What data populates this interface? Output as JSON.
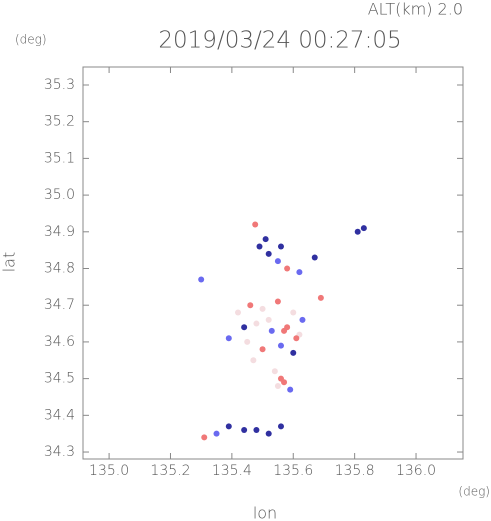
{
  "chart_data": {
    "type": "scatter",
    "title": "2019/03/24 00:27:05",
    "annotation": "ALT(km) 2.0",
    "y_unit": "(deg)",
    "x_unit": "(deg)",
    "xlabel": "lon",
    "ylabel": "lat",
    "xlim": [
      134.915,
      136.153
    ],
    "ylim": [
      34.281,
      35.349
    ],
    "xticks": [
      {
        "value": 135,
        "label": "135.0"
      },
      135.2,
      135.4,
      135.6,
      135.8,
      {
        "value": 136,
        "label": "136.0"
      }
    ],
    "yticks": [
      34.3,
      34.4,
      34.5,
      34.6,
      34.7,
      34.8,
      34.9,
      {
        "value": 35,
        "label": "35.0"
      },
      35.1,
      35.2,
      35.3
    ],
    "x": [
      135.3,
      135.476,
      135.49,
      135.52,
      135.55,
      135.58,
      135.51,
      135.56,
      135.81,
      135.83,
      135.67,
      135.69,
      135.62,
      135.42,
      135.46,
      135.5,
      135.55,
      135.6,
      135.63,
      135.44,
      135.48,
      135.53,
      135.58,
      135.62,
      135.45,
      135.5,
      135.56,
      135.61,
      135.39,
      135.52,
      135.57,
      135.6,
      135.47,
      135.54,
      135.56,
      135.57,
      135.55,
      135.59,
      135.39,
      135.44,
      135.48,
      135.52,
      135.56,
      135.31,
      135.35
    ],
    "y": [
      34.77,
      34.92,
      34.86,
      34.84,
      34.82,
      34.8,
      34.88,
      34.86,
      34.9,
      34.91,
      34.83,
      34.72,
      34.79,
      34.68,
      34.7,
      34.69,
      34.71,
      34.68,
      34.66,
      34.64,
      34.65,
      34.63,
      34.64,
      34.62,
      34.6,
      34.58,
      34.59,
      34.61,
      34.61,
      34.66,
      34.63,
      34.57,
      34.55,
      34.52,
      34.5,
      34.49,
      34.48,
      34.47,
      34.37,
      34.36,
      34.36,
      34.35,
      34.37,
      34.34,
      34.35
    ],
    "colors": [
      "#6a6af0",
      "#f07878",
      "#3030a0",
      "#3030a0",
      "#6a6af0",
      "#f07878",
      "#3030a0",
      "#3030a0",
      "#3030a0",
      "#3030a0",
      "#3030a0",
      "#f07878",
      "#6a6af0",
      "#f4dde0",
      "#f07878",
      "#f4dde0",
      "#f07878",
      "#f4dde0",
      "#6a6af0",
      "#3030a0",
      "#f4dde0",
      "#6a6af0",
      "#f07878",
      "#f4dde0",
      "#f4dde0",
      "#f07878",
      "#6a6af0",
      "#f07878",
      "#6a6af0",
      "#f4dde0",
      "#f07878",
      "#3030a0",
      "#f4dde0",
      "#f4dde0",
      "#f07878",
      "#f07878",
      "#f4dde0",
      "#6a6af0",
      "#3030a0",
      "#3030a0",
      "#3030a0",
      "#3030a0",
      "#3030a0",
      "#f07878",
      "#6a6af0"
    ]
  }
}
